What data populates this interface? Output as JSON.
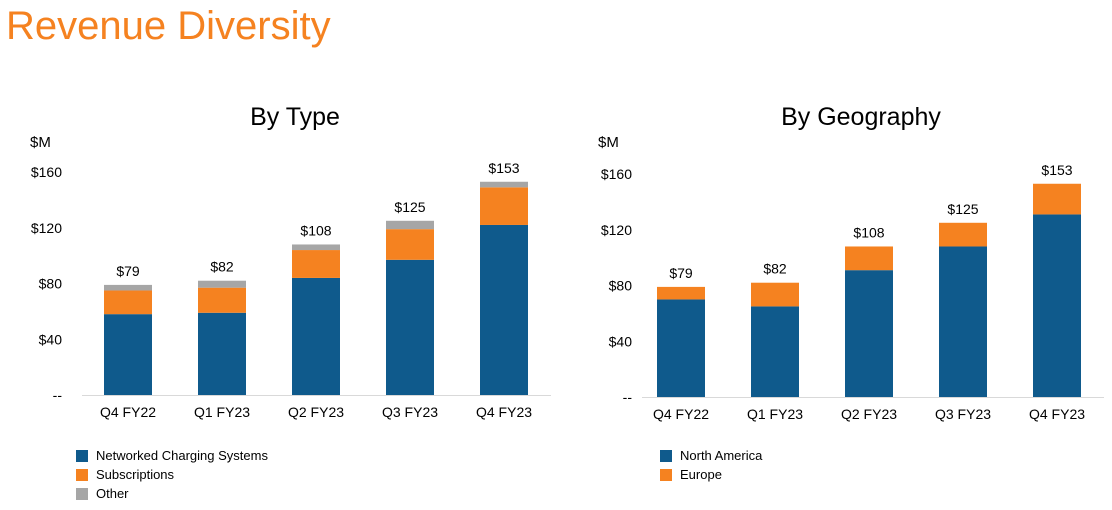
{
  "page": {
    "title": "Revenue Diversity"
  },
  "chart_data": [
    {
      "type": "bar",
      "stacked": true,
      "title": "By Type",
      "ylabel": "$M",
      "categories": [
        "Q4 FY22",
        "Q1 FY23",
        "Q2 FY23",
        "Q3 FY23",
        "Q4 FY23"
      ],
      "series": [
        {
          "name": "Networked Charging Systems",
          "color": "#0f5a8c",
          "values": [
            58,
            59,
            84,
            97,
            122
          ]
        },
        {
          "name": "Subscriptions",
          "color": "#f58220",
          "values": [
            17,
            18,
            20,
            22,
            27
          ]
        },
        {
          "name": "Other",
          "color": "#a6a6a6",
          "values": [
            4,
            5,
            4,
            6,
            4
          ]
        }
      ],
      "totals": [
        "$79",
        "$82",
        "$108",
        "$125",
        "$153"
      ],
      "ylim": [
        0,
        160
      ],
      "yticks": [
        0,
        40,
        80,
        120,
        160
      ],
      "yticklabels": [
        "--",
        "$40",
        "$80",
        "$120",
        "$160"
      ],
      "legend_position": "bottom-left",
      "grid": false
    },
    {
      "type": "bar",
      "stacked": true,
      "title": "By Geography",
      "ylabel": "$M",
      "categories": [
        "Q4 FY22",
        "Q1 FY23",
        "Q2 FY23",
        "Q3 FY23",
        "Q4 FY23"
      ],
      "series": [
        {
          "name": "North America",
          "color": "#0f5a8c",
          "values": [
            70,
            65,
            91,
            108,
            131
          ]
        },
        {
          "name": "Europe",
          "color": "#f58220",
          "values": [
            9,
            17,
            17,
            17,
            22
          ]
        }
      ],
      "totals": [
        "$79",
        "$82",
        "$108",
        "$125",
        "$153"
      ],
      "ylim": [
        0,
        160
      ],
      "yticks": [
        0,
        40,
        80,
        120,
        160
      ],
      "yticklabels": [
        "--",
        "$40",
        "$80",
        "$120",
        "$160"
      ],
      "legend_position": "bottom-left",
      "grid": false
    }
  ]
}
